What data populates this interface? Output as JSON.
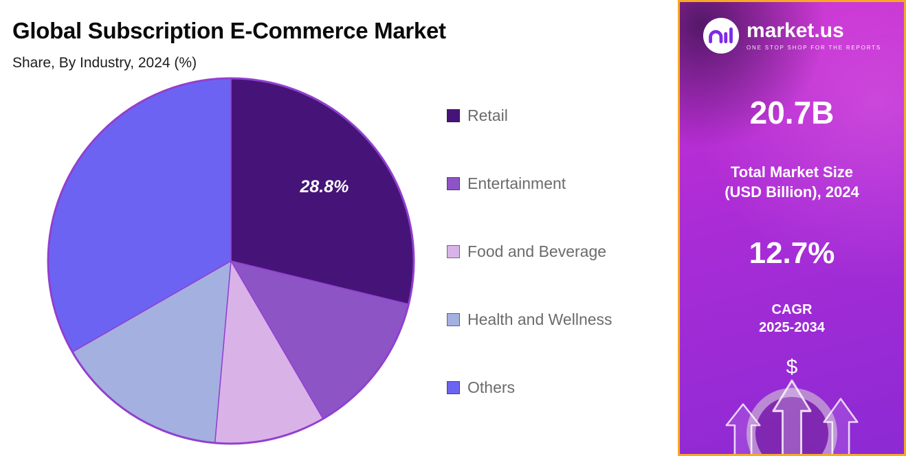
{
  "header": {
    "title": "Global Subscription E-Commerce Market",
    "subtitle": "Share, By Industry, 2024 (%)"
  },
  "chart_data": {
    "type": "pie",
    "title": "Global Subscription E-Commerce Market Share, By Industry, 2024 (%)",
    "categories": [
      "Retail",
      "Entertainment",
      "Food and Beverage",
      "Health and Wellness",
      "Others"
    ],
    "values": [
      28.8,
      12.8,
      9.8,
      15.3,
      33.3
    ],
    "unit": "%",
    "colors": [
      "#461478",
      "#8d54c6",
      "#d9b3e8",
      "#a4b0e0",
      "#6d63f2"
    ],
    "start_angle_deg": 0,
    "direction": "clockwise",
    "slice_labels": [
      {
        "category": "Retail",
        "text": "28.8%"
      }
    ],
    "legend_position": "right",
    "outline_color": "#9140cf"
  },
  "sidebar": {
    "accent_border_color": "#F9A825",
    "brand": {
      "name": "market.us",
      "tagline": "ONE STOP SHOP FOR THE REPORTS"
    },
    "market_size": {
      "value": "20.7B",
      "label_line1": "Total Market Size",
      "label_line2": "(USD Billion), 2024"
    },
    "cagr": {
      "value": "12.7%",
      "label_line1": "CAGR",
      "label_line2": "2025-2034"
    },
    "dollar_symbol": "$"
  }
}
